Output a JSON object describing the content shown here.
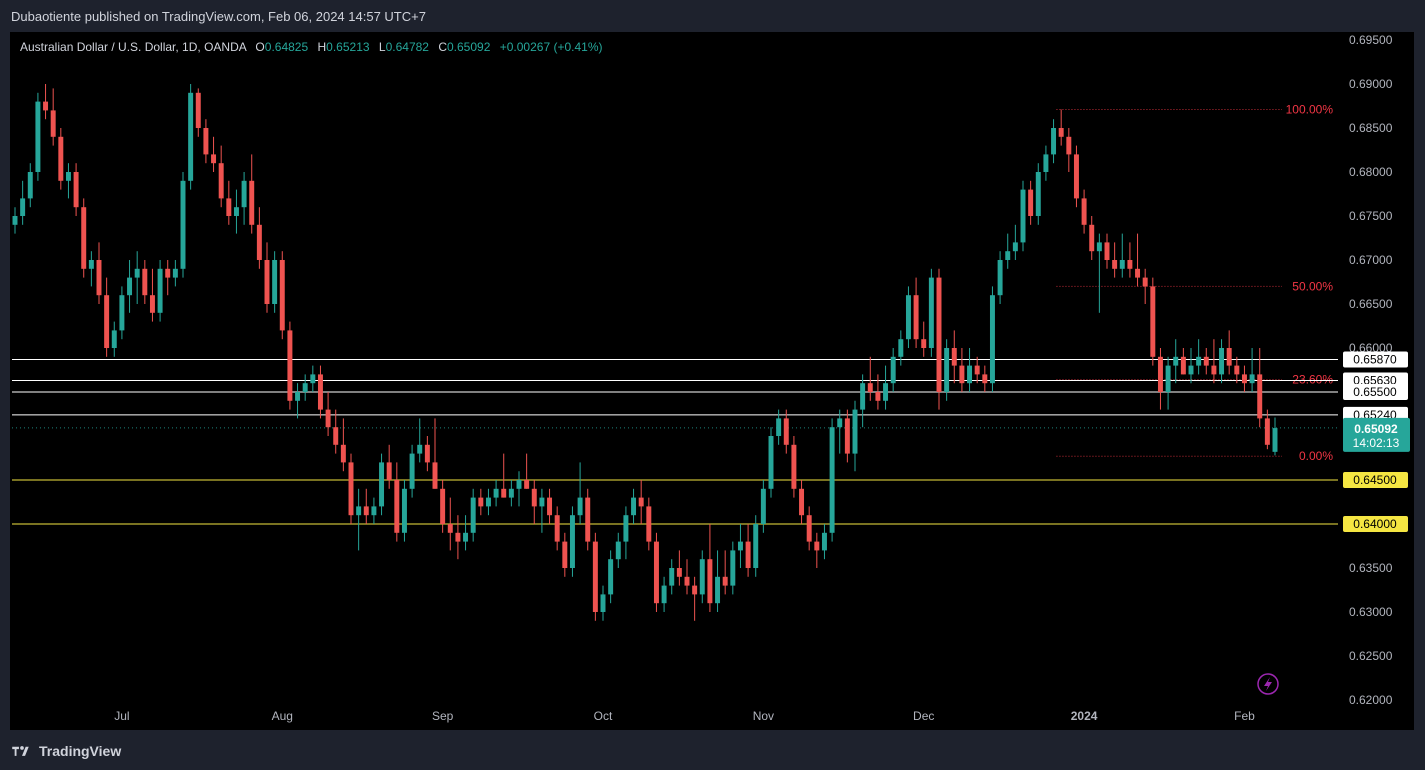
{
  "header": {
    "published_text": "Dubaotiente published on TradingView.com, Feb 06, 2024 14:57 UTC+7"
  },
  "legend": {
    "symbol": "Australian Dollar / U.S. Dollar, 1D, OANDA",
    "o_label": "O",
    "o_value": "0.64825",
    "h_label": "H",
    "h_value": "0.65213",
    "l_label": "L",
    "l_value": "0.64782",
    "c_label": "C",
    "c_value": "0.65092",
    "change": "+0.00267 (+0.41%)"
  },
  "footer": {
    "brand": "TradingView"
  },
  "chart_data": {
    "type": "candlestick",
    "y_axis": {
      "min": 0.62,
      "max": 0.695,
      "ticks": [
        0.62,
        0.625,
        0.63,
        0.635,
        0.64,
        0.645,
        0.65,
        0.655,
        0.66,
        0.665,
        0.67,
        0.675,
        0.68,
        0.685,
        0.69,
        0.695
      ],
      "tick_labels": [
        "0.62000",
        "0.62500",
        "0.63000",
        "0.63500",
        "0.64000",
        "0.64500",
        "0.65000",
        "0.65500",
        "0.66000",
        "0.66500",
        "0.67000",
        "0.67500",
        "0.68000",
        "0.68500",
        "0.69000",
        "0.69500"
      ]
    },
    "x_axis": {
      "labels": [
        {
          "text": "Jul",
          "index": 14
        },
        {
          "text": "Aug",
          "index": 35
        },
        {
          "text": "Sep",
          "index": 56
        },
        {
          "text": "Oct",
          "index": 77
        },
        {
          "text": "Nov",
          "index": 98
        },
        {
          "text": "Dec",
          "index": 119
        },
        {
          "text": "2024",
          "index": 140
        },
        {
          "text": "Feb",
          "index": 161
        }
      ]
    },
    "fibonacci": [
      {
        "label": "100.00%",
        "price": 0.6871
      },
      {
        "label": "50.00%",
        "price": 0.667
      },
      {
        "label": "23.60%",
        "price": 0.6564
      },
      {
        "label": "0.00%",
        "price": 0.6477
      }
    ],
    "horizontal_lines": [
      {
        "price": 0.6587,
        "label": "0.65870",
        "color": "#ffffff"
      },
      {
        "price": 0.6563,
        "label": "0.65630",
        "color": "#ffffff"
      },
      {
        "price": 0.655,
        "label": "0.65500",
        "color": "#ffffff"
      },
      {
        "price": 0.6524,
        "label": "0.65240",
        "color": "#ffffff"
      },
      {
        "price": 0.645,
        "label": "0.64500",
        "color": "#f5e642"
      },
      {
        "price": 0.64,
        "label": "0.64000",
        "color": "#f5e642"
      }
    ],
    "last_price": {
      "price": 0.65092,
      "label": "0.65092",
      "countdown": "14:02:13"
    },
    "colors": {
      "up": "#26a69a",
      "down": "#ef5350",
      "fib": "#f23645",
      "background": "#000000"
    },
    "candles": [
      [
        0.674,
        0.676,
        0.673,
        0.675
      ],
      [
        0.675,
        0.679,
        0.674,
        0.677
      ],
      [
        0.677,
        0.681,
        0.676,
        0.68
      ],
      [
        0.68,
        0.689,
        0.679,
        0.688
      ],
      [
        0.688,
        0.69,
        0.686,
        0.687
      ],
      [
        0.687,
        0.6895,
        0.683,
        0.684
      ],
      [
        0.684,
        0.685,
        0.678,
        0.679
      ],
      [
        0.679,
        0.681,
        0.677,
        0.68
      ],
      [
        0.68,
        0.681,
        0.675,
        0.676
      ],
      [
        0.676,
        0.677,
        0.668,
        0.669
      ],
      [
        0.669,
        0.671,
        0.667,
        0.67
      ],
      [
        0.67,
        0.672,
        0.665,
        0.666
      ],
      [
        0.666,
        0.668,
        0.659,
        0.66
      ],
      [
        0.66,
        0.663,
        0.659,
        0.662
      ],
      [
        0.662,
        0.667,
        0.661,
        0.666
      ],
      [
        0.666,
        0.67,
        0.664,
        0.668
      ],
      [
        0.668,
        0.671,
        0.665,
        0.669
      ],
      [
        0.669,
        0.67,
        0.665,
        0.666
      ],
      [
        0.666,
        0.669,
        0.663,
        0.664
      ],
      [
        0.664,
        0.67,
        0.663,
        0.669
      ],
      [
        0.669,
        0.67,
        0.666,
        0.668
      ],
      [
        0.668,
        0.67,
        0.667,
        0.669
      ],
      [
        0.669,
        0.68,
        0.668,
        0.679
      ],
      [
        0.679,
        0.69,
        0.678,
        0.689
      ],
      [
        0.689,
        0.6895,
        0.684,
        0.685
      ],
      [
        0.685,
        0.686,
        0.681,
        0.682
      ],
      [
        0.682,
        0.684,
        0.68,
        0.681
      ],
      [
        0.681,
        0.683,
        0.676,
        0.677
      ],
      [
        0.677,
        0.679,
        0.674,
        0.675
      ],
      [
        0.675,
        0.678,
        0.673,
        0.676
      ],
      [
        0.676,
        0.68,
        0.674,
        0.679
      ],
      [
        0.679,
        0.682,
        0.673,
        0.674
      ],
      [
        0.674,
        0.676,
        0.669,
        0.67
      ],
      [
        0.67,
        0.672,
        0.664,
        0.665
      ],
      [
        0.665,
        0.671,
        0.664,
        0.67
      ],
      [
        0.67,
        0.671,
        0.661,
        0.662
      ],
      [
        0.662,
        0.663,
        0.653,
        0.654
      ],
      [
        0.654,
        0.656,
        0.652,
        0.655
      ],
      [
        0.655,
        0.657,
        0.654,
        0.656
      ],
      [
        0.656,
        0.658,
        0.655,
        0.657
      ],
      [
        0.657,
        0.658,
        0.652,
        0.653
      ],
      [
        0.653,
        0.655,
        0.65,
        0.651
      ],
      [
        0.651,
        0.653,
        0.648,
        0.649
      ],
      [
        0.649,
        0.652,
        0.646,
        0.647
      ],
      [
        0.647,
        0.648,
        0.64,
        0.641
      ],
      [
        0.641,
        0.644,
        0.637,
        0.642
      ],
      [
        0.642,
        0.644,
        0.64,
        0.641
      ],
      [
        0.641,
        0.643,
        0.64,
        0.642
      ],
      [
        0.642,
        0.648,
        0.641,
        0.647
      ],
      [
        0.647,
        0.649,
        0.644,
        0.645
      ],
      [
        0.645,
        0.647,
        0.638,
        0.639
      ],
      [
        0.639,
        0.645,
        0.638,
        0.644
      ],
      [
        0.644,
        0.649,
        0.643,
        0.648
      ],
      [
        0.648,
        0.652,
        0.647,
        0.649
      ],
      [
        0.649,
        0.65,
        0.646,
        0.647
      ],
      [
        0.647,
        0.652,
        0.644,
        0.644
      ],
      [
        0.644,
        0.645,
        0.639,
        0.64
      ],
      [
        0.64,
        0.643,
        0.637,
        0.639
      ],
      [
        0.639,
        0.641,
        0.636,
        0.638
      ],
      [
        0.638,
        0.641,
        0.637,
        0.639
      ],
      [
        0.639,
        0.644,
        0.638,
        0.643
      ],
      [
        0.643,
        0.644,
        0.641,
        0.642
      ],
      [
        0.642,
        0.644,
        0.641,
        0.643
      ],
      [
        0.643,
        0.645,
        0.642,
        0.644
      ],
      [
        0.644,
        0.648,
        0.643,
        0.643
      ],
      [
        0.643,
        0.645,
        0.642,
        0.644
      ],
      [
        0.644,
        0.646,
        0.642,
        0.645
      ],
      [
        0.645,
        0.648,
        0.644,
        0.644
      ],
      [
        0.644,
        0.645,
        0.64,
        0.642
      ],
      [
        0.642,
        0.644,
        0.639,
        0.643
      ],
      [
        0.643,
        0.644,
        0.64,
        0.641
      ],
      [
        0.641,
        0.642,
        0.637,
        0.638
      ],
      [
        0.638,
        0.639,
        0.634,
        0.635
      ],
      [
        0.635,
        0.642,
        0.634,
        0.641
      ],
      [
        0.641,
        0.647,
        0.64,
        0.643
      ],
      [
        0.643,
        0.644,
        0.637,
        0.638
      ],
      [
        0.638,
        0.639,
        0.629,
        0.63
      ],
      [
        0.63,
        0.633,
        0.629,
        0.632
      ],
      [
        0.632,
        0.637,
        0.631,
        0.636
      ],
      [
        0.636,
        0.639,
        0.635,
        0.638
      ],
      [
        0.638,
        0.642,
        0.636,
        0.641
      ],
      [
        0.641,
        0.644,
        0.64,
        0.643
      ],
      [
        0.643,
        0.645,
        0.64,
        0.642
      ],
      [
        0.642,
        0.643,
        0.637,
        0.638
      ],
      [
        0.638,
        0.639,
        0.63,
        0.631
      ],
      [
        0.631,
        0.634,
        0.63,
        0.633
      ],
      [
        0.633,
        0.636,
        0.632,
        0.635
      ],
      [
        0.635,
        0.637,
        0.633,
        0.634
      ],
      [
        0.634,
        0.636,
        0.632,
        0.633
      ],
      [
        0.633,
        0.634,
        0.629,
        0.632
      ],
      [
        0.632,
        0.637,
        0.631,
        0.636
      ],
      [
        0.636,
        0.64,
        0.63,
        0.631
      ],
      [
        0.631,
        0.637,
        0.63,
        0.634
      ],
      [
        0.634,
        0.637,
        0.632,
        0.633
      ],
      [
        0.633,
        0.638,
        0.632,
        0.637
      ],
      [
        0.637,
        0.64,
        0.635,
        0.638
      ],
      [
        0.638,
        0.64,
        0.634,
        0.635
      ],
      [
        0.635,
        0.641,
        0.634,
        0.64
      ],
      [
        0.64,
        0.645,
        0.639,
        0.644
      ],
      [
        0.644,
        0.651,
        0.643,
        0.65
      ],
      [
        0.65,
        0.653,
        0.649,
        0.652
      ],
      [
        0.652,
        0.653,
        0.648,
        0.649
      ],
      [
        0.649,
        0.65,
        0.643,
        0.644
      ],
      [
        0.644,
        0.645,
        0.64,
        0.641
      ],
      [
        0.641,
        0.642,
        0.637,
        0.638
      ],
      [
        0.638,
        0.639,
        0.635,
        0.637
      ],
      [
        0.637,
        0.64,
        0.636,
        0.639
      ],
      [
        0.639,
        0.652,
        0.638,
        0.651
      ],
      [
        0.651,
        0.653,
        0.648,
        0.652
      ],
      [
        0.652,
        0.653,
        0.647,
        0.648
      ],
      [
        0.648,
        0.654,
        0.646,
        0.653
      ],
      [
        0.653,
        0.657,
        0.651,
        0.656
      ],
      [
        0.656,
        0.659,
        0.654,
        0.655
      ],
      [
        0.655,
        0.657,
        0.653,
        0.654
      ],
      [
        0.654,
        0.658,
        0.653,
        0.656
      ],
      [
        0.656,
        0.66,
        0.655,
        0.659
      ],
      [
        0.659,
        0.662,
        0.658,
        0.661
      ],
      [
        0.661,
        0.667,
        0.66,
        0.666
      ],
      [
        0.666,
        0.668,
        0.66,
        0.661
      ],
      [
        0.661,
        0.663,
        0.659,
        0.66
      ],
      [
        0.66,
        0.669,
        0.659,
        0.668
      ],
      [
        0.668,
        0.669,
        0.653,
        0.655
      ],
      [
        0.655,
        0.661,
        0.654,
        0.66
      ],
      [
        0.66,
        0.662,
        0.656,
        0.658
      ],
      [
        0.658,
        0.66,
        0.655,
        0.656
      ],
      [
        0.656,
        0.66,
        0.655,
        0.658
      ],
      [
        0.658,
        0.659,
        0.656,
        0.657
      ],
      [
        0.657,
        0.658,
        0.655,
        0.656
      ],
      [
        0.656,
        0.667,
        0.655,
        0.666
      ],
      [
        0.666,
        0.671,
        0.665,
        0.67
      ],
      [
        0.67,
        0.673,
        0.669,
        0.671
      ],
      [
        0.671,
        0.674,
        0.67,
        0.672
      ],
      [
        0.672,
        0.679,
        0.671,
        0.678
      ],
      [
        0.678,
        0.679,
        0.674,
        0.675
      ],
      [
        0.675,
        0.681,
        0.674,
        0.68
      ],
      [
        0.68,
        0.683,
        0.679,
        0.682
      ],
      [
        0.682,
        0.686,
        0.681,
        0.685
      ],
      [
        0.685,
        0.6871,
        0.683,
        0.684
      ],
      [
        0.684,
        0.685,
        0.68,
        0.682
      ],
      [
        0.682,
        0.683,
        0.676,
        0.677
      ],
      [
        0.677,
        0.678,
        0.673,
        0.674
      ],
      [
        0.674,
        0.675,
        0.67,
        0.671
      ],
      [
        0.671,
        0.673,
        0.664,
        0.672
      ],
      [
        0.672,
        0.673,
        0.669,
        0.67
      ],
      [
        0.67,
        0.672,
        0.668,
        0.669
      ],
      [
        0.669,
        0.673,
        0.668,
        0.67
      ],
      [
        0.67,
        0.672,
        0.668,
        0.669
      ],
      [
        0.669,
        0.673,
        0.667,
        0.668
      ],
      [
        0.668,
        0.669,
        0.665,
        0.667
      ],
      [
        0.667,
        0.668,
        0.658,
        0.659
      ],
      [
        0.659,
        0.66,
        0.653,
        0.655
      ],
      [
        0.655,
        0.659,
        0.653,
        0.658
      ],
      [
        0.658,
        0.661,
        0.656,
        0.659
      ],
      [
        0.659,
        0.66,
        0.657,
        0.657
      ],
      [
        0.657,
        0.66,
        0.656,
        0.658
      ],
      [
        0.658,
        0.661,
        0.657,
        0.659
      ],
      [
        0.659,
        0.66,
        0.657,
        0.658
      ],
      [
        0.658,
        0.661,
        0.656,
        0.657
      ],
      [
        0.657,
        0.661,
        0.656,
        0.66
      ],
      [
        0.66,
        0.662,
        0.657,
        0.658
      ],
      [
        0.658,
        0.659,
        0.656,
        0.657
      ],
      [
        0.657,
        0.658,
        0.655,
        0.656
      ],
      [
        0.656,
        0.66,
        0.655,
        0.657
      ],
      [
        0.657,
        0.66,
        0.651,
        0.652
      ],
      [
        0.652,
        0.653,
        0.6485,
        0.649
      ],
      [
        0.6482,
        0.6521,
        0.6478,
        0.6509
      ]
    ]
  }
}
